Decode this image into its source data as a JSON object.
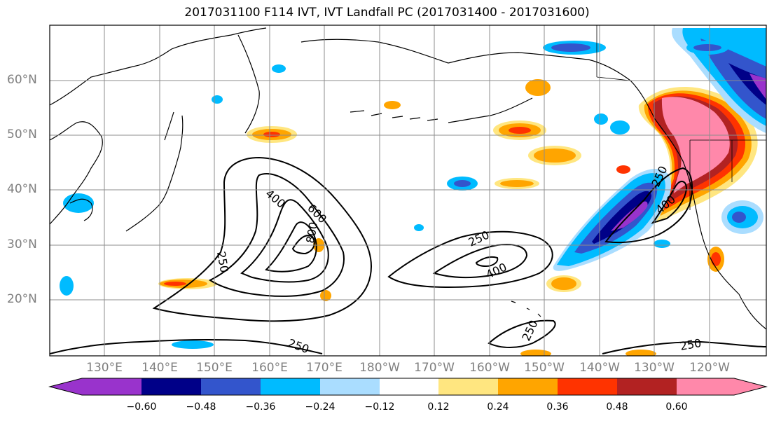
{
  "title": "2017031100 F114 IVT, IVT Landfall PC (2017031400 - 2017031600)",
  "latitude_labels": [
    "60°N",
    "50°N",
    "40°N",
    "30°N",
    "20°N"
  ],
  "longitude_labels": [
    "130°E",
    "140°E",
    "150°E",
    "160°E",
    "170°E",
    "180°W",
    "170°W",
    "160°W",
    "150°W",
    "140°W",
    "130°W",
    "120°W"
  ],
  "contour_labels": {
    "ivt_values": [
      "400",
      "600",
      "800",
      "250",
      "250",
      "400",
      "250",
      "250",
      "250",
      "400",
      "250"
    ]
  },
  "colorbar": {
    "tick_labels": [
      "−0.60",
      "−0.48",
      "−0.36",
      "−0.24",
      "−0.12",
      "0.12",
      "0.24",
      "0.36",
      "0.48",
      "0.60"
    ],
    "colors": [
      "#9933cc",
      "#000088",
      "#3355cc",
      "#00bbff",
      "#aaddff",
      "#ffffff",
      "#ffe680",
      "#ffa500",
      "#ff3300",
      "#b22222",
      "#ff88aa"
    ]
  }
}
